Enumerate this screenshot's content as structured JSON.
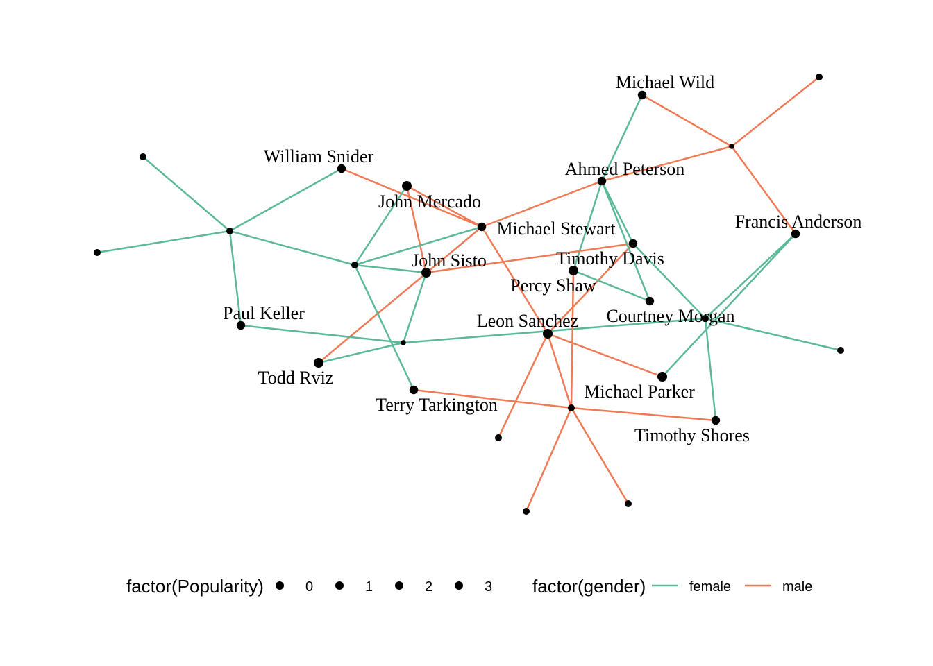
{
  "chart_data": {
    "type": "network",
    "colors": {
      "female": "#5BB99A",
      "male": "#EF7A55",
      "node": "#000000"
    },
    "nodes": [
      {
        "id": "n1",
        "label": "Michael Wild",
        "popularity": 2
      },
      {
        "id": "n2",
        "label": "",
        "popularity": 1
      },
      {
        "id": "n3",
        "label": "",
        "popularity": 0
      },
      {
        "id": "n4",
        "label": "Ahmed Peterson",
        "popularity": 2
      },
      {
        "id": "n5",
        "label": "William Snider",
        "popularity": 2
      },
      {
        "id": "n6",
        "label": "",
        "popularity": 1
      },
      {
        "id": "n7",
        "label": "John Mercado",
        "popularity": 3
      },
      {
        "id": "n8",
        "label": "Michael Stewart",
        "popularity": 2
      },
      {
        "id": "n9",
        "label": "",
        "popularity": 1
      },
      {
        "id": "n10",
        "label": "Francis Anderson",
        "popularity": 2
      },
      {
        "id": "n11",
        "label": "",
        "popularity": 1
      },
      {
        "id": "n12",
        "label": "Timothy Davis",
        "popularity": 2
      },
      {
        "id": "n13",
        "label": "",
        "popularity": 1
      },
      {
        "id": "n14",
        "label": "John Sisto",
        "popularity": 3
      },
      {
        "id": "n15",
        "label": "Percy Shaw",
        "popularity": 3
      },
      {
        "id": "n16",
        "label": "Courtney Morgan",
        "popularity": 2
      },
      {
        "id": "n17",
        "label": "Paul Keller",
        "popularity": 2
      },
      {
        "id": "n18",
        "label": "Leon Sanchez",
        "popularity": 3
      },
      {
        "id": "n19",
        "label": "",
        "popularity": 1
      },
      {
        "id": "n20",
        "label": "",
        "popularity": 0
      },
      {
        "id": "n21",
        "label": "",
        "popularity": 1
      },
      {
        "id": "n22",
        "label": "Todd Rviz",
        "popularity": 3
      },
      {
        "id": "n23",
        "label": "Michael Parker",
        "popularity": 3
      },
      {
        "id": "n24",
        "label": "Terry Tarkington",
        "popularity": 2
      },
      {
        "id": "n25",
        "label": "",
        "popularity": 1
      },
      {
        "id": "n26",
        "label": "Timothy Shores",
        "popularity": 2
      },
      {
        "id": "n27",
        "label": "",
        "popularity": 1
      },
      {
        "id": "n28",
        "label": "",
        "popularity": 1
      },
      {
        "id": "n29",
        "label": "",
        "popularity": 1
      },
      {
        "id": "n30",
        "label": "",
        "popularity": 1
      }
    ],
    "edges": [
      {
        "from": "n1",
        "to": "n4",
        "gender": "female"
      },
      {
        "from": "n1",
        "to": "n3",
        "gender": "male"
      },
      {
        "from": "n2",
        "to": "n3",
        "gender": "male"
      },
      {
        "from": "n3",
        "to": "n4",
        "gender": "male"
      },
      {
        "from": "n3",
        "to": "n10",
        "gender": "male"
      },
      {
        "from": "n4",
        "to": "n8",
        "gender": "male"
      },
      {
        "from": "n4",
        "to": "n12",
        "gender": "female"
      },
      {
        "from": "n4",
        "to": "n15",
        "gender": "female"
      },
      {
        "from": "n5",
        "to": "n9",
        "gender": "female"
      },
      {
        "from": "n5",
        "to": "n8",
        "gender": "male"
      },
      {
        "from": "n6",
        "to": "n9",
        "gender": "female"
      },
      {
        "from": "n11",
        "to": "n9",
        "gender": "female"
      },
      {
        "from": "n9",
        "to": "n17",
        "gender": "female"
      },
      {
        "from": "n9",
        "to": "n13",
        "gender": "female"
      },
      {
        "from": "n7",
        "to": "n13",
        "gender": "female"
      },
      {
        "from": "n7",
        "to": "n8",
        "gender": "male"
      },
      {
        "from": "n7",
        "to": "n14",
        "gender": "male"
      },
      {
        "from": "n8",
        "to": "n13",
        "gender": "female"
      },
      {
        "from": "n8",
        "to": "n22",
        "gender": "male"
      },
      {
        "from": "n8",
        "to": "n18",
        "gender": "male"
      },
      {
        "from": "n13",
        "to": "n14",
        "gender": "female"
      },
      {
        "from": "n13",
        "to": "n24",
        "gender": "female"
      },
      {
        "from": "n14",
        "to": "n12",
        "gender": "male"
      },
      {
        "from": "n14",
        "to": "n20",
        "gender": "female"
      },
      {
        "from": "n12",
        "to": "n16",
        "gender": "female"
      },
      {
        "from": "n12",
        "to": "n18",
        "gender": "male"
      },
      {
        "from": "n10",
        "to": "n23",
        "gender": "female"
      },
      {
        "from": "n16",
        "to": "n21",
        "gender": "female"
      },
      {
        "from": "n16",
        "to": "n26",
        "gender": "female"
      },
      {
        "from": "n16",
        "to": "n20",
        "gender": "female"
      },
      {
        "from": "n15",
        "to": "n25",
        "gender": "male"
      },
      {
        "from": "n17",
        "to": "n20",
        "gender": "female"
      },
      {
        "from": "n20",
        "to": "n22",
        "gender": "female"
      },
      {
        "from": "n18",
        "to": "n23",
        "gender": "male"
      },
      {
        "from": "n18",
        "to": "n27",
        "gender": "male"
      },
      {
        "from": "n18",
        "to": "n25",
        "gender": "male"
      },
      {
        "from": "n24",
        "to": "n25",
        "gender": "male"
      },
      {
        "from": "n25",
        "to": "n26",
        "gender": "male"
      },
      {
        "from": "n25",
        "to": "n28",
        "gender": "male"
      },
      {
        "from": "n25",
        "to": "n29",
        "gender": "male"
      }
    ]
  },
  "legend": {
    "popularity_title": "factor(Popularity)",
    "popularity_levels": [
      "0",
      "1",
      "2",
      "3"
    ],
    "gender_title": "factor(gender)",
    "gender_levels": [
      "female",
      "male"
    ]
  }
}
